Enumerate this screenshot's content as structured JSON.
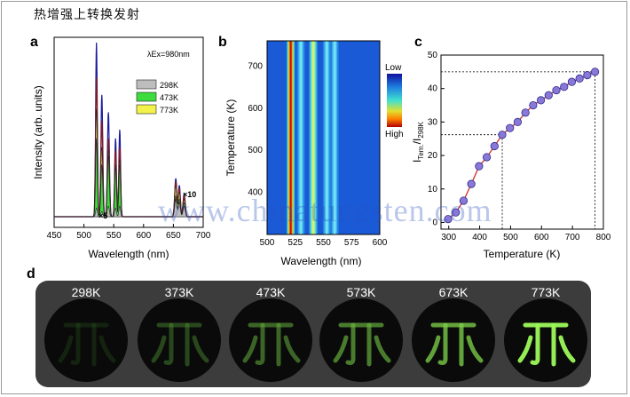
{
  "caption": "热增强上转换发射",
  "watermark": "www.chinatungsten.com",
  "panels": {
    "a": "a",
    "b": "b",
    "c": "c",
    "d": "d"
  },
  "chart_data": [
    {
      "panel": "a",
      "type": "line",
      "xlabel": "Wavelength (nm)",
      "ylabel": "Intensity (arb. units)",
      "xlim": [
        450,
        700
      ],
      "xticks": [
        450,
        500,
        550,
        600,
        650,
        700
      ],
      "annotation_excitation": "λEx=980nm",
      "annotation_scale": "×10",
      "annotation_scale2": "×5",
      "legend": [
        "298K",
        "473K",
        "773K"
      ],
      "legend_colors": [
        "#bdbdbd",
        "#3ddc3d",
        "#f2f24a"
      ],
      "peaks_nm": [
        521,
        530,
        541,
        553,
        560,
        654,
        660,
        668
      ],
      "series": [
        {
          "name": "298K",
          "color": "#bdbdbd",
          "values": [
            0.05,
            0.03,
            0.06,
            0.05,
            0.06,
            0.1,
            0.08,
            0.06
          ]
        },
        {
          "name": "473K",
          "color": "#3ddc3d",
          "values": [
            0.45,
            0.3,
            0.35,
            0.28,
            0.3,
            0.12,
            0.1,
            0.08
          ]
        },
        {
          "name": "773K",
          "color": "#f2f24a",
          "values": [
            0.62,
            0.4,
            0.38,
            0.3,
            0.33,
            0.18,
            0.14,
            0.1
          ]
        },
        {
          "name": "",
          "color": "#8b1a1a",
          "values": [
            0.8,
            0.55,
            0.45,
            0.38,
            0.4,
            0.2,
            0.16,
            0.12
          ]
        },
        {
          "name": "",
          "color": "#1a1aa0",
          "values": [
            1.0,
            0.7,
            0.6,
            0.45,
            0.5,
            0.22,
            0.18,
            0.13
          ]
        }
      ]
    },
    {
      "panel": "b",
      "type": "heatmap",
      "xlabel": "Wavelength (nm)",
      "ylabel": "Temperature (K)",
      "xlim": [
        500,
        600
      ],
      "ylim": [
        300,
        760
      ],
      "xticks": [
        500,
        525,
        550,
        575,
        600
      ],
      "yticks": [
        400,
        500,
        600,
        700
      ],
      "colorbar": {
        "low": "Low",
        "high": "High"
      },
      "bands_nm": [
        521,
        530,
        541,
        553,
        560
      ],
      "band_intensity": [
        1.0,
        0.45,
        0.6,
        0.35,
        0.3
      ]
    },
    {
      "panel": "c",
      "type": "line",
      "xlabel": "Temperature (K)",
      "ylabel": "I_Tem./I_298K",
      "xlim": [
        275,
        800
      ],
      "ylim": [
        -2,
        50
      ],
      "xticks": [
        300,
        400,
        500,
        600,
        700,
        800
      ],
      "yticks": [
        0,
        10,
        20,
        30,
        40,
        50
      ],
      "x": [
        298,
        323,
        348,
        373,
        398,
        423,
        448,
        473,
        498,
        523,
        548,
        573,
        598,
        623,
        648,
        673,
        698,
        723,
        748,
        773
      ],
      "y": [
        1.0,
        3.0,
        6.5,
        11.5,
        16.8,
        19.5,
        22.8,
        26.2,
        28.2,
        30.0,
        32.8,
        35.0,
        36.5,
        38.0,
        39.5,
        40.5,
        42.0,
        43.0,
        44.0,
        45.0
      ],
      "reference_lines": [
        {
          "x": 473,
          "y": 26.2
        },
        {
          "x": 773,
          "y": 45.0
        }
      ]
    }
  ],
  "samples": [
    {
      "label": "298K",
      "glow": 0.05
    },
    {
      "label": "373K",
      "glow": 0.3
    },
    {
      "label": "473K",
      "glow": 0.45
    },
    {
      "label": "573K",
      "glow": 0.55
    },
    {
      "label": "673K",
      "glow": 0.7
    },
    {
      "label": "773K",
      "glow": 0.95
    }
  ]
}
